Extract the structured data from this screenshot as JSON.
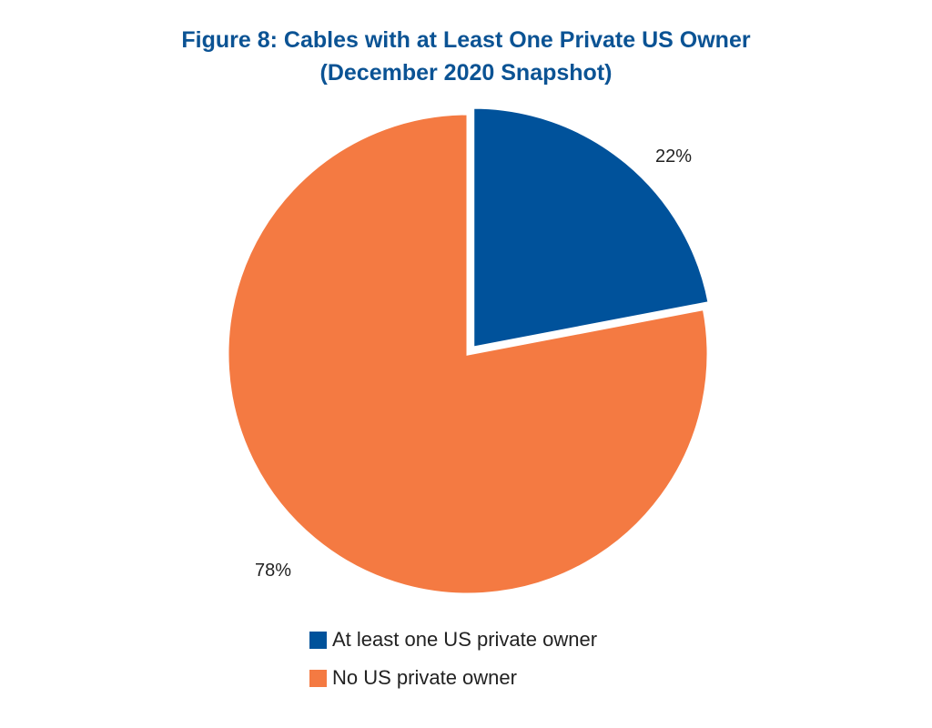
{
  "chart_data": {
    "type": "pie",
    "title": "Figure 8: Cables with at Least One Private US Owner",
    "subtitle": "(December 2020 Snapshot)",
    "categories": [
      "At least one US private owner",
      "No US private owner"
    ],
    "values": [
      22,
      78
    ],
    "value_labels": [
      "22%",
      "78%"
    ],
    "colors": [
      "#00529b",
      "#f47a42"
    ],
    "legend_placement": "bottom",
    "exploded": [
      "At least one US private owner"
    ]
  }
}
